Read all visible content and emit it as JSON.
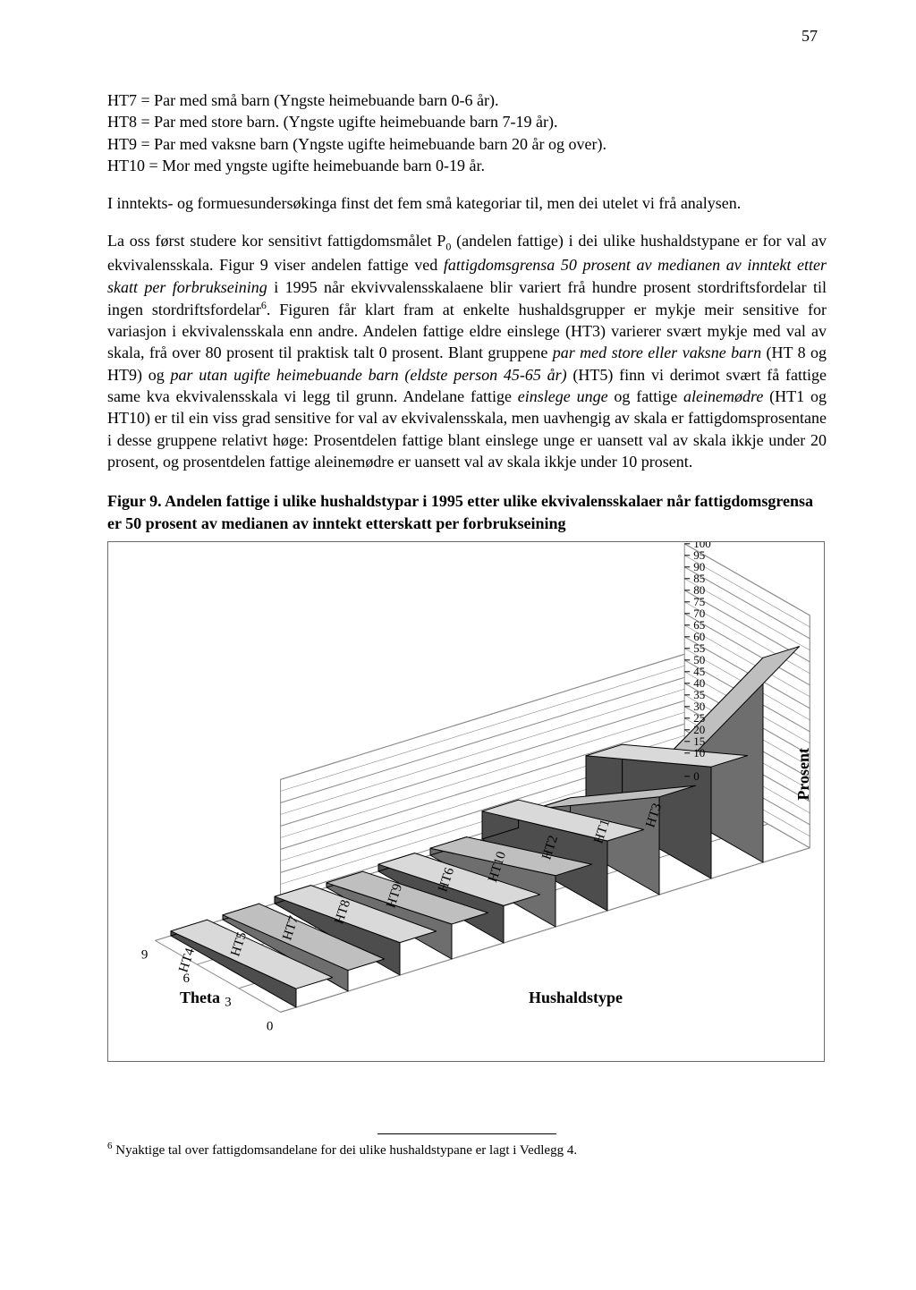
{
  "page_number": "57",
  "definitions": {
    "ht7": "HT7 = Par med små barn (Yngste heimebuande barn 0-6 år).",
    "ht8": "HT8 = Par med store barn. (Yngste ugifte heimebuande barn 7-19 år).",
    "ht9": "HT9 = Par med vaksne barn (Yngste ugifte heimebuande barn 20 år og over).",
    "ht10": "HT10 = Mor med yngste ugifte heimebuande barn 0-19 år."
  },
  "para_intro": "I inntekts- og formuesundersøkinga finst det fem små kategoriar til, men dei utelet vi frå analysen.",
  "para_main_pre": "La oss først studere kor sensitivt fattigdomsmålet P",
  "para_main_sub": "0",
  "para_main_post1": " (andelen fattige) i dei ulike hushaldstypane er for val av ekvivalensskala. Figur 9 viser andelen fattige ved ",
  "para_italic1": "fattigdomsgrensa 50 prosent av medianen av inntekt etter skatt per forbrukseining",
  "para_main_post2": " i 1995 når ekvivvalensskalaene blir variert frå hundre prosent stordriftsfordelar til ingen stordriftsfordelar",
  "para_sup6": "6",
  "para_main_post3": ". Figuren får klart fram at enkelte hushaldsgrupper er mykje meir sensitive for variasjon i ekvivalensskala enn andre. Andelen fattige eldre einslege (HT3) varierer svært mykje med val av skala, frå over 80 prosent til praktisk talt 0 prosent. Blant gruppene ",
  "para_italic2": "par med store eller vaksne barn",
  "para_main_post4": " (HT 8 og HT9) og ",
  "para_italic3": "par utan ugifte heimebuande barn (eldste person 45-65 år)",
  "para_main_post5": " (HT5) finn vi derimot svært få fattige same kva ekvivalensskala vi legg til grunn. Andelane fattige ",
  "para_italic4": "einslege unge",
  "para_main_post6": " og fattige ",
  "para_italic5": "aleinemødre",
  "para_main_post7": " (HT1 og HT10) er til ein viss grad sensitive for val av ekvivalensskala, men uavhengig av skala er fattigdomsprosentane i desse gruppene relativt høge: Prosentdelen fattige blant einslege unge er uansett val av skala ikkje under 20 prosent, og prosentdelen fattige aleinemødre er uansett val av skala ikkje under 10 prosent.",
  "figure_caption": "Figur 9. Andelen fattige i ulike hushaldstypar i 1995 etter ulike ekvivalensskalaer når fattigdomsgrensa er 50 prosent av medianen av inntekt etterskatt per forbrukseining",
  "chart": {
    "type": "3d-ribbon",
    "x_axis_label": "Theta",
    "y_axis_label": "Hushaldstype",
    "z_axis_label": "Prosent",
    "theta_values": [
      "0",
      "3",
      "6",
      "9"
    ],
    "z_ticks": [
      "0",
      "10",
      "20",
      "30",
      "40",
      "50",
      "60",
      "70",
      "80",
      "90",
      "100"
    ],
    "z_ticks_dense": [
      "0",
      "10",
      "15",
      "20",
      "25",
      "30",
      "35",
      "40",
      "45",
      "50",
      "55",
      "60",
      "65",
      "70",
      "75",
      "80",
      "85",
      "90",
      "95",
      "100"
    ],
    "zlim": [
      0,
      100
    ],
    "categories": [
      "HT4",
      "HT5",
      "HT7",
      "HT8",
      "HT9",
      "HT6",
      "HT10",
      "HT2",
      "HT1",
      "HT3"
    ],
    "series": {
      "HT4": {
        "theta0": 8,
        "theta1": 2
      },
      "HT5": {
        "theta0": 9,
        "theta1": 2
      },
      "HT7": {
        "theta0": 14,
        "theta1": 3
      },
      "HT8": {
        "theta0": 15,
        "theta1": 2
      },
      "HT9": {
        "theta0": 16,
        "theta1": 3
      },
      "HT6": {
        "theta0": 22,
        "theta1": 3
      },
      "HT10": {
        "theta0": 30,
        "theta1": 12
      },
      "HT2": {
        "theta0": 42,
        "theta1": 6
      },
      "HT1": {
        "theta0": 48,
        "theta1": 22
      },
      "HT3": {
        "theta0": 88,
        "theta1": 2
      }
    },
    "colors": {
      "ribbon_top": "#d9d9d9",
      "ribbon_top_alt": "#bfbfbf",
      "ribbon_side": "#4d4d4d",
      "ribbon_side_alt": "#6e6e6e",
      "ribbon_edge": "#000000",
      "backwall": "#ffffff",
      "grid": "#8a8a8a",
      "floor": "#ffffff",
      "border": "#6b6b6b"
    },
    "ribbon_depth": 0.7,
    "font_size_axis": 15,
    "font_size_z": 13
  },
  "footnote_marker": "6",
  "footnote_text": " Nyaktige tal over fattigdomsandelane for dei ulike hushaldstypane er lagt i Vedlegg 4."
}
